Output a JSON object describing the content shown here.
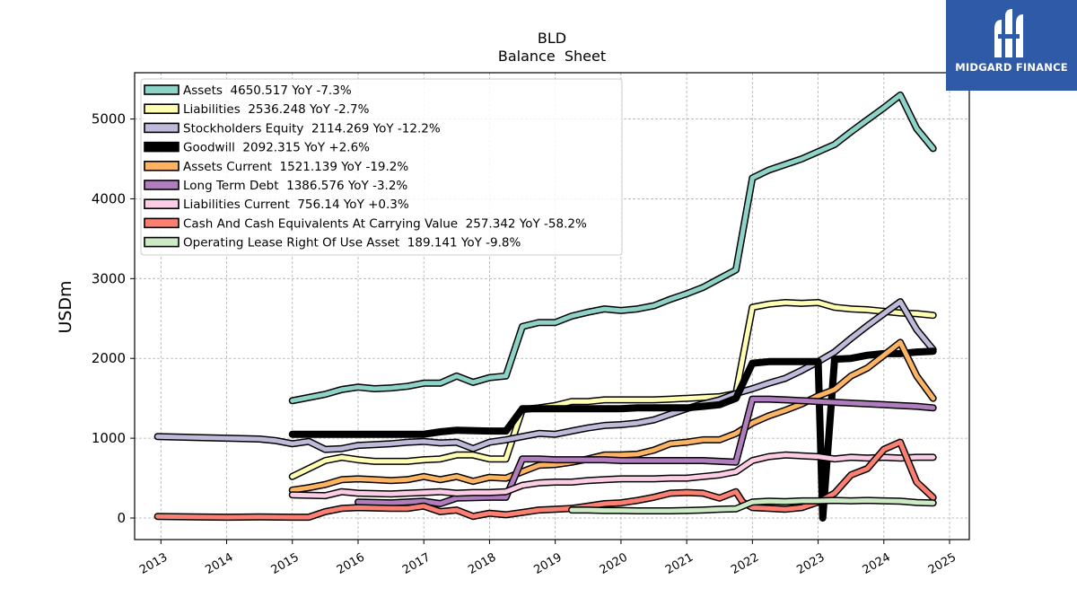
{
  "chart_data": {
    "type": "line",
    "title": "BLD",
    "subtitle": "Balance  Sheet",
    "ylabel": "USDm",
    "xlabel": "",
    "xlim": [
      2012.6,
      2025.3
    ],
    "ylim": [
      -270,
      5580
    ],
    "yticks": [
      0,
      1000,
      2000,
      3000,
      4000,
      5000
    ],
    "xticks": [
      "2013",
      "2014",
      "2015",
      "2016",
      "2017",
      "2018",
      "2019",
      "2020",
      "2021",
      "2022",
      "2023",
      "2024",
      "2025"
    ],
    "grid": true,
    "legend_position": "top-left",
    "series": [
      {
        "name": "Assets  4650.517 YoY -7.3%",
        "color": "#8dd3c7",
        "width": 5,
        "x": [
          2015.0,
          2015.5,
          2015.75,
          2016.0,
          2016.25,
          2016.5,
          2016.75,
          2017.0,
          2017.25,
          2017.5,
          2017.75,
          2018.0,
          2018.25,
          2018.5,
          2018.75,
          2019.0,
          2019.25,
          2019.5,
          2019.75,
          2020.0,
          2020.25,
          2020.5,
          2020.75,
          2021.0,
          2021.25,
          2021.5,
          2021.75,
          2022.0,
          2022.25,
          2022.5,
          2022.75,
          2023.0,
          2023.25,
          2023.5,
          2023.75,
          2024.0,
          2024.25,
          2024.5,
          2024.75
        ],
        "y": [
          1470,
          1550,
          1610,
          1640,
          1620,
          1630,
          1650,
          1690,
          1690,
          1780,
          1700,
          1760,
          1780,
          2400,
          2450,
          2450,
          2530,
          2580,
          2620,
          2600,
          2620,
          2660,
          2740,
          2810,
          2890,
          3000,
          3110,
          4260,
          4360,
          4430,
          4500,
          4590,
          4680,
          4840,
          4990,
          5140,
          5300,
          4880,
          4630
        ]
      },
      {
        "name": "Liabilities  2536.248 YoY -2.7%",
        "color": "#ffffb3",
        "width": 5,
        "x": [
          2015.0,
          2015.25,
          2015.5,
          2015.75,
          2016.0,
          2016.25,
          2016.5,
          2016.75,
          2017.0,
          2017.25,
          2017.5,
          2017.75,
          2018.0,
          2018.25,
          2018.5,
          2018.75,
          2019.0,
          2019.25,
          2019.5,
          2019.75,
          2020.0,
          2020.25,
          2020.5,
          2020.75,
          2021.0,
          2021.25,
          2021.5,
          2021.75,
          2022.0,
          2022.25,
          2022.5,
          2022.75,
          2023.0,
          2023.25,
          2023.5,
          2023.75,
          2024.0,
          2024.25,
          2024.5,
          2024.75
        ],
        "y": [
          520,
          620,
          720,
          760,
          730,
          710,
          710,
          710,
          730,
          740,
          790,
          790,
          740,
          740,
          1360,
          1380,
          1410,
          1460,
          1460,
          1480,
          1480,
          1480,
          1480,
          1490,
          1500,
          1510,
          1520,
          1560,
          2640,
          2680,
          2700,
          2690,
          2700,
          2640,
          2620,
          2610,
          2590,
          2570,
          2560,
          2540
        ]
      },
      {
        "name": "Stockholders Equity  2114.269 YoY -12.2%",
        "color": "#bebada",
        "width": 5,
        "x": [
          2012.95,
          2013.5,
          2014.0,
          2014.5,
          2014.75,
          2015.0,
          2015.25,
          2015.5,
          2015.75,
          2016.0,
          2016.25,
          2016.5,
          2016.75,
          2017.0,
          2017.25,
          2017.5,
          2017.75,
          2018.0,
          2018.25,
          2018.5,
          2018.75,
          2019.0,
          2019.25,
          2019.5,
          2019.75,
          2020.0,
          2020.25,
          2020.5,
          2020.75,
          2021.0,
          2021.25,
          2021.5,
          2021.75,
          2022.0,
          2022.25,
          2022.5,
          2022.75,
          2023.0,
          2023.25,
          2023.5,
          2023.75,
          2024.0,
          2024.25,
          2024.5,
          2024.75
        ],
        "y": [
          1020,
          1010,
          1000,
          990,
          970,
          930,
          960,
          860,
          870,
          910,
          920,
          930,
          950,
          960,
          940,
          950,
          870,
          950,
          980,
          1020,
          1060,
          1050,
          1090,
          1130,
          1160,
          1170,
          1190,
          1230,
          1300,
          1370,
          1430,
          1480,
          1560,
          1620,
          1690,
          1750,
          1850,
          1960,
          2080,
          2250,
          2410,
          2560,
          2710,
          2360,
          2110
        ]
      },
      {
        "name": "Goodwill  2092.315 YoY +2.6%",
        "color": "#000000",
        "width": 8,
        "x": [
          2015.0,
          2015.5,
          2016.0,
          2016.5,
          2017.0,
          2017.25,
          2017.5,
          2018.0,
          2018.25,
          2018.5,
          2018.75,
          2019.0,
          2019.25,
          2019.5,
          2019.75,
          2020.0,
          2020.25,
          2020.5,
          2020.75,
          2021.0,
          2021.25,
          2021.5,
          2021.75,
          2022.0,
          2022.25,
          2022.5,
          2022.75,
          2023.0,
          2023.07,
          2023.25,
          2023.5,
          2023.75,
          2024.0,
          2024.25,
          2024.5,
          2024.75
        ],
        "y": [
          1050,
          1050,
          1050,
          1050,
          1050,
          1080,
          1100,
          1090,
          1090,
          1370,
          1370,
          1370,
          1370,
          1370,
          1370,
          1370,
          1380,
          1380,
          1380,
          1380,
          1400,
          1420,
          1500,
          1940,
          1960,
          1960,
          1960,
          1960,
          0,
          1990,
          2000,
          2040,
          2060,
          2060,
          2080,
          2090
        ]
      },
      {
        "name": "Assets Current  1521.139 YoY -19.2%",
        "color": "#fdb462",
        "width": 5,
        "x": [
          2015.0,
          2015.25,
          2015.5,
          2015.75,
          2016.0,
          2016.25,
          2016.5,
          2016.75,
          2017.0,
          2017.25,
          2017.5,
          2017.75,
          2018.0,
          2018.25,
          2018.5,
          2018.75,
          2019.0,
          2019.25,
          2019.5,
          2019.75,
          2020.0,
          2020.25,
          2020.5,
          2020.75,
          2021.0,
          2021.25,
          2021.5,
          2021.75,
          2022.0,
          2022.25,
          2022.5,
          2022.75,
          2023.0,
          2023.25,
          2023.5,
          2023.75,
          2024.0,
          2024.25,
          2024.5,
          2024.75
        ],
        "y": [
          350,
          380,
          420,
          480,
          490,
          480,
          470,
          480,
          520,
          480,
          520,
          460,
          510,
          500,
          580,
          660,
          670,
          700,
          740,
          790,
          790,
          800,
          850,
          930,
          950,
          980,
          980,
          1060,
          1190,
          1280,
          1350,
          1430,
          1530,
          1610,
          1780,
          1880,
          2040,
          2200,
          1780,
          1500
        ]
      },
      {
        "name": "Long Term Debt  1386.576 YoY -3.2%",
        "color": "#b07dbf",
        "width": 5,
        "x": [
          2016.0,
          2016.5,
          2017.0,
          2017.25,
          2017.5,
          2018.0,
          2018.25,
          2018.5,
          2018.75,
          2019.0,
          2019.25,
          2019.5,
          2019.75,
          2020.0,
          2020.25,
          2020.5,
          2020.75,
          2021.0,
          2021.25,
          2021.5,
          2021.75,
          2022.0,
          2022.25,
          2022.5,
          2022.75,
          2023.0,
          2023.25,
          2023.5,
          2023.75,
          2024.0,
          2024.25,
          2024.5,
          2024.75
        ],
        "y": [
          200,
          190,
          210,
          180,
          250,
          260,
          260,
          740,
          740,
          730,
          730,
          730,
          730,
          720,
          720,
          720,
          720,
          720,
          720,
          710,
          700,
          1490,
          1490,
          1480,
          1470,
          1460,
          1450,
          1440,
          1430,
          1420,
          1410,
          1400,
          1380
        ]
      },
      {
        "name": "Liabilities Current  756.14 YoY +0.3%",
        "color": "#fccde5",
        "width": 5,
        "x": [
          2015.0,
          2015.5,
          2015.75,
          2016.0,
          2016.5,
          2016.75,
          2017.0,
          2017.25,
          2017.5,
          2017.75,
          2018.0,
          2018.25,
          2018.5,
          2018.75,
          2019.0,
          2019.25,
          2019.5,
          2019.75,
          2020.0,
          2020.25,
          2020.5,
          2020.75,
          2021.0,
          2021.25,
          2021.5,
          2021.75,
          2022.0,
          2022.25,
          2022.5,
          2022.75,
          2023.0,
          2023.25,
          2023.5,
          2023.75,
          2024.0,
          2024.25,
          2024.5,
          2024.75
        ],
        "y": [
          290,
          280,
          330,
          310,
          300,
          310,
          320,
          330,
          310,
          320,
          320,
          330,
          410,
          440,
          450,
          450,
          470,
          480,
          490,
          490,
          490,
          500,
          500,
          520,
          540,
          580,
          720,
          770,
          790,
          780,
          770,
          740,
          760,
          750,
          760,
          750,
          760,
          760
        ]
      },
      {
        "name": "Cash And Cash Equivalents At Carrying Value  257.342 YoY -58.2%",
        "color": "#fb8072",
        "width": 5,
        "x": [
          2012.95,
          2013.5,
          2014.0,
          2014.5,
          2015.0,
          2015.25,
          2015.5,
          2015.75,
          2016.0,
          2016.5,
          2016.75,
          2017.0,
          2017.25,
          2017.5,
          2017.75,
          2018.0,
          2018.25,
          2018.5,
          2018.75,
          2019.0,
          2019.25,
          2019.5,
          2019.75,
          2020.0,
          2020.25,
          2020.5,
          2020.75,
          2021.0,
          2021.25,
          2021.5,
          2021.75,
          2021.85,
          2022.0,
          2022.25,
          2022.5,
          2022.75,
          2023.0,
          2023.25,
          2023.5,
          2023.75,
          2024.0,
          2024.25,
          2024.5,
          2024.75
        ],
        "y": [
          20,
          15,
          10,
          15,
          10,
          10,
          80,
          120,
          130,
          120,
          120,
          150,
          80,
          100,
          20,
          60,
          40,
          70,
          100,
          110,
          120,
          150,
          180,
          190,
          220,
          260,
          310,
          320,
          310,
          250,
          330,
          200,
          130,
          120,
          110,
          130,
          200,
          310,
          540,
          620,
          860,
          950,
          450,
          257
        ]
      },
      {
        "name": "Operating Lease Right Of Use Asset  189.141 YoY -9.8%",
        "color": "#ccebc5",
        "width": 5,
        "x": [
          2019.25,
          2019.5,
          2019.75,
          2020.0,
          2020.25,
          2020.5,
          2020.75,
          2021.0,
          2021.25,
          2021.5,
          2021.75,
          2022.0,
          2022.25,
          2022.5,
          2022.75,
          2023.0,
          2023.25,
          2023.5,
          2023.75,
          2024.0,
          2024.25,
          2024.5,
          2024.75
        ],
        "y": [
          100,
          100,
          95,
          95,
          90,
          90,
          90,
          95,
          100,
          110,
          115,
          200,
          210,
          205,
          215,
          215,
          220,
          215,
          220,
          215,
          210,
          195,
          189
        ]
      }
    ]
  },
  "logo": {
    "text": "MIDGARD FINANCE"
  }
}
